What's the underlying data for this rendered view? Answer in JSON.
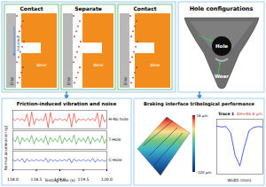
{
  "mechanism": {
    "stages": [
      "Contact",
      "Separate",
      "Contact"
    ],
    "rotating": "Rotating",
    "disc": "Disc",
    "wear": "Wear"
  },
  "hole_panel": {
    "title": "Hole configurations",
    "hole": "Hole",
    "wear": "Wear"
  },
  "tribology_panel": {
    "title": "Braking interface tribological performance",
    "colorbar": {
      "range": [
        -120,
        16
      ],
      "ticks": [
        {
          "value": 16,
          "label": "16 μm"
        },
        {
          "value": -120,
          "label": "-120 μm"
        }
      ]
    }
  },
  "chart_data": [
    {
      "type": "line",
      "title": "Friction-induced vibration and noise",
      "x_label": "Testing time (s)",
      "y_label": "Normal acceleration (g)",
      "x": [
        118,
        118.05,
        118.1,
        118.15,
        118.2,
        118.25,
        118.3,
        118.35,
        118.4,
        118.45,
        118.5,
        118.55,
        118.6,
        118.65,
        118.7,
        118.75,
        118.8,
        118.85,
        118.9,
        118.95,
        119,
        119.05,
        119.1,
        119.15,
        119.2,
        119.25,
        119.3,
        119.35,
        119.4,
        119.45,
        119.5,
        119.55,
        119.6,
        119.65,
        119.7,
        119.75,
        119.8,
        119.85,
        119.9,
        119.95,
        120
      ],
      "xlim": [
        118,
        120
      ],
      "xticks": [
        {
          "value": 118,
          "label": "118.0"
        },
        {
          "value": 118.5,
          "label": "118.5"
        },
        {
          "value": 119,
          "label": "119.0"
        },
        {
          "value": 119.5,
          "label": "119.5"
        },
        {
          "value": 120,
          "label": "120.0"
        }
      ],
      "ylim": [
        -3,
        3
      ],
      "tick_labels": "x",
      "series": [
        {
          "name": "H-No hole",
          "color": "#e8221b",
          "values": [
            0.2,
            -0.3,
            0.4,
            -0.2,
            0.3,
            -0.5,
            1.8,
            -2.2,
            2.5,
            -1.6,
            0.4,
            -0.3,
            0.2,
            -0.4,
            2.0,
            -2.6,
            2.3,
            -1.2,
            0.3,
            -0.2,
            0.4,
            -0.3,
            0.2,
            -0.5,
            1.9,
            -2.4,
            2.1,
            -1.0,
            0.3,
            -0.2,
            0.2,
            -0.3,
            0.4,
            -0.2,
            0.3,
            -0.4,
            2.2,
            -2.5,
            1.7,
            -0.8,
            0.3
          ]
        },
        {
          "name": "T-Hole",
          "color": "#2ca02c",
          "values": [
            0.5,
            -0.6,
            1.2,
            -1.4,
            0.8,
            -0.5,
            0.6,
            -0.7,
            1.5,
            -1.3,
            0.7,
            -0.6,
            0.5,
            -0.8,
            1.3,
            -1.5,
            0.9,
            -0.6,
            0.5,
            -0.7,
            1.4,
            -1.2,
            0.8,
            -0.5,
            0.6,
            -0.7,
            1.6,
            -1.4,
            0.7,
            -0.5,
            0.6,
            -0.8,
            1.2,
            -1.3,
            0.9,
            -0.6,
            0.5,
            -0.7,
            1.4,
            -1.1,
            0.6
          ]
        },
        {
          "name": "C-Hole",
          "color": "#1f3fd6",
          "values": [
            0.2,
            -0.2,
            0.3,
            -0.2,
            0.6,
            -0.7,
            0.5,
            -0.3,
            0.2,
            -0.2,
            0.3,
            -0.2,
            0.2,
            -0.3,
            0.7,
            -0.6,
            0.4,
            -0.2,
            0.2,
            -0.3,
            0.2,
            -0.2,
            0.3,
            -0.2,
            0.6,
            -0.8,
            0.5,
            -0.3,
            0.2,
            -0.2,
            0.3,
            -0.2,
            0.2,
            -0.3,
            0.7,
            -0.6,
            0.4,
            -0.2,
            0.2,
            -0.3,
            0.2
          ]
        }
      ]
    },
    {
      "type": "line",
      "title": "Trace 1",
      "annotation": "ΔH=86.8 μm",
      "x_label": "Width (mm)",
      "x": [
        0,
        0.5,
        1,
        1.5,
        2,
        2.5,
        3,
        3.5,
        4,
        4.5,
        5
      ],
      "xlim": [
        0,
        5
      ],
      "ylim": [
        -100,
        20
      ],
      "tick_labels": false,
      "series": [
        {
          "name": "Trace 1",
          "color": "#1f3fd6",
          "values": [
            5,
            3,
            4,
            -10,
            -60,
            -82,
            -40,
            -5,
            2,
            4,
            3
          ]
        }
      ]
    }
  ]
}
